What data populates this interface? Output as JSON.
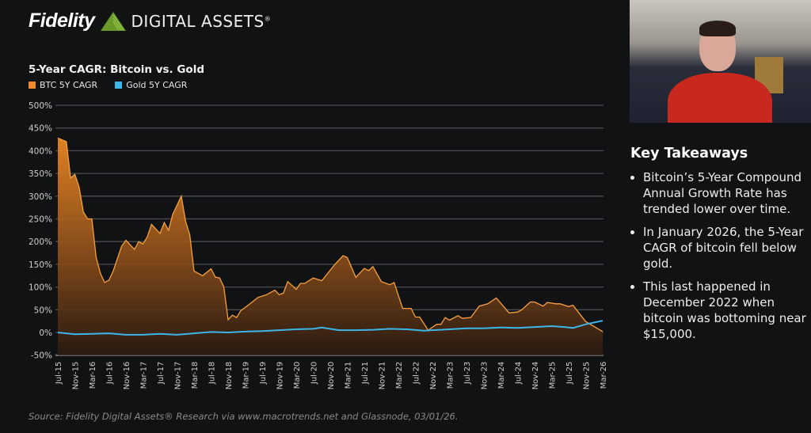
{
  "header": {
    "logo_text": "Fidelity",
    "logo_subtitle": "DIGITAL ASSETS",
    "logo_mark": "®",
    "logo_icon": "green-pyramid-icon"
  },
  "chart_data": {
    "type": "area",
    "title": "5-Year CAGR: Bitcoin vs. Gold",
    "xlabel": "",
    "ylabel": "",
    "ylim": [
      -50,
      500
    ],
    "y_ticks": [
      "500%",
      "450%",
      "400%",
      "350%",
      "300%",
      "250%",
      "200%",
      "150%",
      "100%",
      "50%",
      "0%",
      "-50%"
    ],
    "y_tick_values": [
      500,
      450,
      400,
      350,
      300,
      250,
      200,
      150,
      100,
      50,
      0,
      -50
    ],
    "x_ticks": [
      "Jul-15",
      "Nov-15",
      "Mar-16",
      "Jul-16",
      "Nov-16",
      "Mar-17",
      "Jul-17",
      "Nov-17",
      "Mar-18",
      "Jul-18",
      "Nov-18",
      "Mar-19",
      "Jul-19",
      "Nov-19",
      "Mar-20",
      "Jul-20",
      "Nov-20",
      "Mar-21",
      "Jul-21",
      "Nov-21",
      "Mar-22",
      "Jul-22",
      "Nov-22",
      "Mar-23",
      "Jul-23",
      "Nov-23",
      "Mar-24",
      "Jul-24",
      "Nov-24",
      "Mar-25",
      "Jul-25",
      "Nov-25",
      "Mar-26"
    ],
    "x_range": [
      "2015-07",
      "2026-03"
    ],
    "grid": true,
    "legend_position": "top-left",
    "series": [
      {
        "name": "BTC 5Y CAGR",
        "color": "#f0892a",
        "style": "area",
        "points": [
          [
            "2015-07",
            428
          ],
          [
            "2015-09",
            420
          ],
          [
            "2015-10",
            340
          ],
          [
            "2015-11",
            348
          ],
          [
            "2015-12",
            320
          ],
          [
            "2016-01",
            265
          ],
          [
            "2016-02",
            250
          ],
          [
            "2016-03",
            250
          ],
          [
            "2016-04",
            165
          ],
          [
            "2016-05",
            130
          ],
          [
            "2016-06",
            110
          ],
          [
            "2016-07",
            115
          ],
          [
            "2016-08",
            135
          ],
          [
            "2016-10",
            190
          ],
          [
            "2016-11",
            203
          ],
          [
            "2017-01",
            183
          ],
          [
            "2017-02",
            200
          ],
          [
            "2017-03",
            195
          ],
          [
            "2017-04",
            210
          ],
          [
            "2017-05",
            238
          ],
          [
            "2017-07",
            218
          ],
          [
            "2017-08",
            242
          ],
          [
            "2017-09",
            225
          ],
          [
            "2017-10",
            260
          ],
          [
            "2017-12",
            300
          ],
          [
            "2018-01",
            245
          ],
          [
            "2018-02",
            215
          ],
          [
            "2018-03",
            135
          ],
          [
            "2018-05",
            125
          ],
          [
            "2018-07",
            140
          ],
          [
            "2018-08",
            122
          ],
          [
            "2018-09",
            120
          ],
          [
            "2018-10",
            100
          ],
          [
            "2018-11",
            28
          ],
          [
            "2018-12",
            38
          ],
          [
            "2019-01",
            33
          ],
          [
            "2019-02",
            48
          ],
          [
            "2019-04",
            62
          ],
          [
            "2019-06",
            77
          ],
          [
            "2019-08",
            83
          ],
          [
            "2019-10",
            93
          ],
          [
            "2019-11",
            83
          ],
          [
            "2019-12",
            87
          ],
          [
            "2020-01",
            112
          ],
          [
            "2020-03",
            95
          ],
          [
            "2020-04",
            108
          ],
          [
            "2020-05",
            108
          ],
          [
            "2020-07",
            120
          ],
          [
            "2020-09",
            114
          ],
          [
            "2020-12",
            149
          ],
          [
            "2021-02",
            169
          ],
          [
            "2021-03",
            165
          ],
          [
            "2021-05",
            121
          ],
          [
            "2021-07",
            141
          ],
          [
            "2021-08",
            136
          ],
          [
            "2021-09",
            145
          ],
          [
            "2021-11",
            112
          ],
          [
            "2022-01",
            105
          ],
          [
            "2022-02",
            110
          ],
          [
            "2022-04",
            53
          ],
          [
            "2022-06",
            53
          ],
          [
            "2022-07",
            34
          ],
          [
            "2022-08",
            34
          ],
          [
            "2022-10",
            5
          ],
          [
            "2022-12",
            18
          ],
          [
            "2023-01",
            18
          ],
          [
            "2023-02",
            33
          ],
          [
            "2023-03",
            27
          ],
          [
            "2023-05",
            37
          ],
          [
            "2023-06",
            31
          ],
          [
            "2023-08",
            33
          ],
          [
            "2023-10",
            58
          ],
          [
            "2023-12",
            63
          ],
          [
            "2024-02",
            76
          ],
          [
            "2024-05",
            43
          ],
          [
            "2024-07",
            45
          ],
          [
            "2024-08",
            50
          ],
          [
            "2024-10",
            67
          ],
          [
            "2024-11",
            67
          ],
          [
            "2025-01",
            58
          ],
          [
            "2025-02",
            66
          ],
          [
            "2025-04",
            63
          ],
          [
            "2025-05",
            63
          ],
          [
            "2025-07",
            57
          ],
          [
            "2025-08",
            60
          ],
          [
            "2025-11",
            24
          ],
          [
            "2026-03",
            2
          ]
        ]
      },
      {
        "name": "Gold 5Y CAGR",
        "color": "#3db5e8",
        "style": "line",
        "points": [
          [
            "2015-07",
            0
          ],
          [
            "2015-11",
            -4
          ],
          [
            "2016-03",
            -3
          ],
          [
            "2016-07",
            -2
          ],
          [
            "2016-11",
            -5
          ],
          [
            "2017-03",
            -5
          ],
          [
            "2017-07",
            -3
          ],
          [
            "2017-11",
            -5
          ],
          [
            "2018-03",
            -2
          ],
          [
            "2018-07",
            1
          ],
          [
            "2018-11",
            0
          ],
          [
            "2019-03",
            2
          ],
          [
            "2019-07",
            3
          ],
          [
            "2019-11",
            5
          ],
          [
            "2020-03",
            7
          ],
          [
            "2020-07",
            8
          ],
          [
            "2020-09",
            11
          ],
          [
            "2021-01",
            5
          ],
          [
            "2021-05",
            5
          ],
          [
            "2021-09",
            6
          ],
          [
            "2022-01",
            8
          ],
          [
            "2022-05",
            7
          ],
          [
            "2022-09",
            4
          ],
          [
            "2022-11",
            5
          ],
          [
            "2023-03",
            7
          ],
          [
            "2023-07",
            9
          ],
          [
            "2023-11",
            9
          ],
          [
            "2024-03",
            11
          ],
          [
            "2024-07",
            10
          ],
          [
            "2024-11",
            12
          ],
          [
            "2025-03",
            14
          ],
          [
            "2025-06",
            12
          ],
          [
            "2025-08",
            10
          ],
          [
            "2025-11",
            18
          ],
          [
            "2026-01",
            22
          ],
          [
            "2026-03",
            26
          ]
        ]
      }
    ]
  },
  "source": "Source: Fidelity Digital Assets® Research via www.macrotrends.net and Glassnode, 03/01/26.",
  "webcam": {
    "icon": "presenter-video-feed"
  },
  "takeaways": {
    "heading": "Key Takeaways",
    "items": [
      "Bitcoin’s 5-Year Compound Annual Growth Rate has trended lower over time.",
      "In January 2026, the 5-Year CAGR of bitcoin fell below gold.",
      "This last happened in December 2022 when bitcoin was bottoming near $15,000."
    ]
  }
}
